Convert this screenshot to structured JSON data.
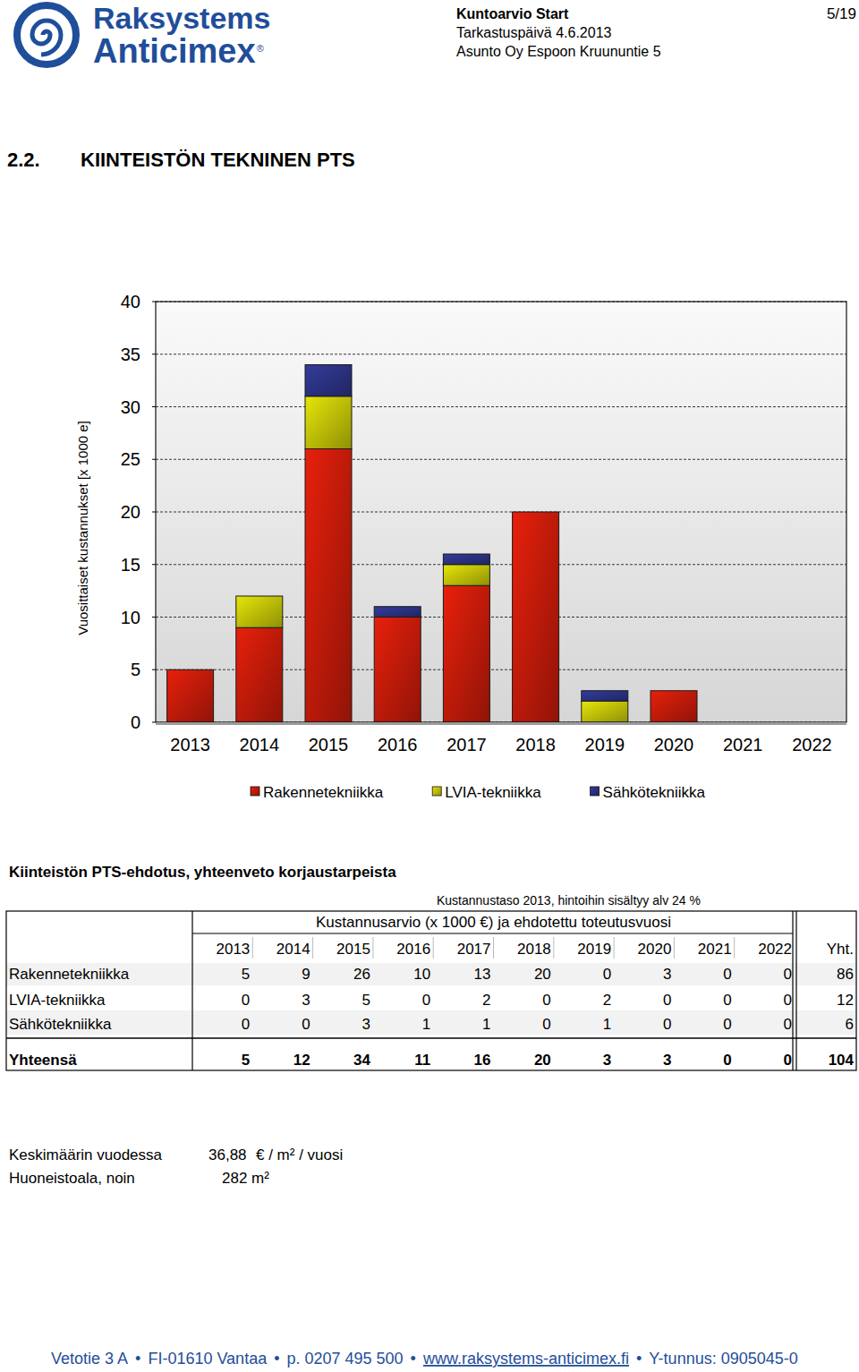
{
  "header": {
    "logo_line1": "Raksystems",
    "logo_line2": "Anticimex",
    "logo_mark": "®",
    "doc_title": "Kuntoarvio Start",
    "date": "Tarkastuspäivä 4.6.2013",
    "property": "Asunto Oy Espoon Kruununtie 5",
    "page": "5/19"
  },
  "section": {
    "number": "2.2.",
    "title": "KIINTEISTÖN TEKNINEN PTS"
  },
  "chart_data": {
    "type": "bar",
    "stacked": true,
    "y_label": "Vuosittaiset kustannukset [x 1000 e]",
    "categories": [
      "2013",
      "2014",
      "2015",
      "2016",
      "2017",
      "2018",
      "2019",
      "2020",
      "2021",
      "2022"
    ],
    "series": [
      {
        "name": "Rakennetekniikka",
        "color": "#e8200c",
        "values": [
          5,
          9,
          26,
          10,
          13,
          20,
          0,
          3,
          0,
          0
        ]
      },
      {
        "name": "LVIA-tekniikka",
        "color": "#e6e60a",
        "values": [
          0,
          3,
          5,
          0,
          2,
          0,
          2,
          0,
          0,
          0
        ]
      },
      {
        "name": "Sähkötekniikka",
        "color": "#343c9c",
        "values": [
          0,
          0,
          3,
          1,
          1,
          0,
          1,
          0,
          0,
          0
        ]
      }
    ],
    "ylim": [
      0,
      40
    ],
    "yticks": [
      0,
      5,
      10,
      15,
      20,
      25,
      30,
      35,
      40
    ],
    "grid": true,
    "legend": "bottom"
  },
  "table": {
    "title": "Kiinteistön PTS-ehdotus, yhteenveto korjaustarpeista",
    "note": "Kustannustaso 2013, hintoihin sisältyy alv 24 %",
    "group_header": "Kustannusarvio (x 1000 €) ja ehdotettu toteutusvuosi",
    "columns": [
      "2013",
      "2014",
      "2015",
      "2016",
      "2017",
      "2018",
      "2019",
      "2020",
      "2021",
      "2022",
      "Yht."
    ],
    "rows": [
      {
        "label": "Rakennetekniikka",
        "values": [
          5,
          9,
          26,
          10,
          13,
          20,
          0,
          3,
          0,
          0,
          86
        ]
      },
      {
        "label": "LVIA-tekniikka",
        "values": [
          0,
          3,
          5,
          0,
          2,
          0,
          2,
          0,
          0,
          0,
          12
        ]
      },
      {
        "label": "Sähkötekniikka",
        "values": [
          0,
          0,
          3,
          1,
          1,
          0,
          1,
          0,
          0,
          0,
          6
        ]
      }
    ],
    "total": {
      "label": "Yhteensä",
      "values": [
        5,
        12,
        34,
        11,
        16,
        20,
        3,
        3,
        0,
        0,
        104
      ]
    }
  },
  "summary": {
    "average_label": "Keskimäärin vuodessa",
    "average_value": "36,88",
    "average_unit": "€ / m² / vuosi",
    "area_label": "Huoneistoala, noin",
    "area_value": "282 m²"
  },
  "footer": {
    "separator": "•",
    "parts": [
      "Vetotie 3 A",
      "FI-01610 Vantaa",
      "p. 0207 495 500",
      "www.raksystems-anticimex.fi",
      "Y-tunnus: 0905045-0"
    ]
  }
}
